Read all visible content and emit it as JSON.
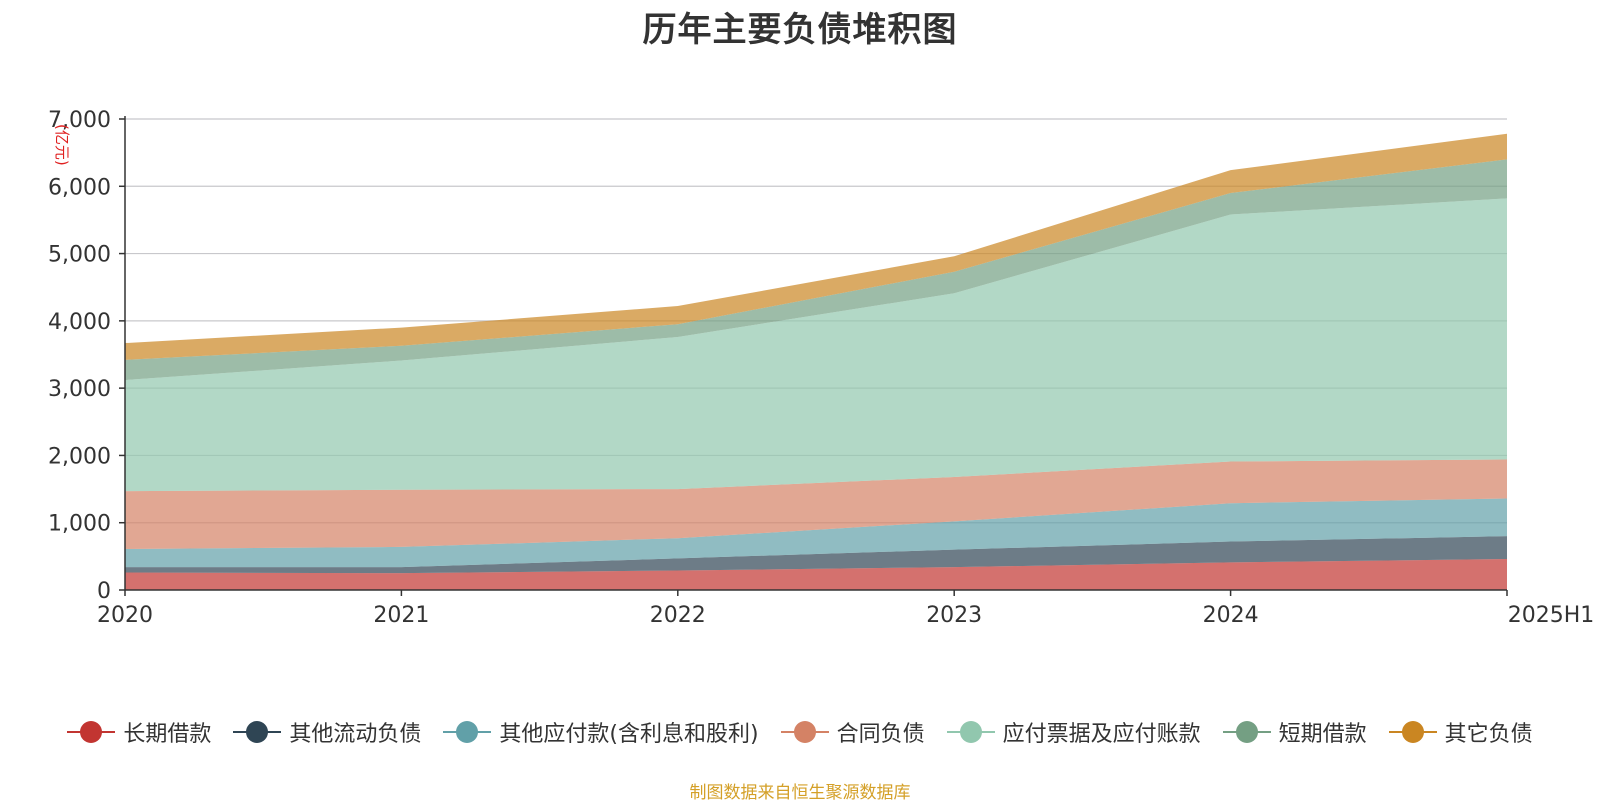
{
  "chart_data": {
    "type": "area",
    "stacked": true,
    "title": "历年主要负债堆积图",
    "unit_label": "(亿元)",
    "x": [
      "2020",
      "2021",
      "2022",
      "2023",
      "2024",
      "2025H1"
    ],
    "ylim": [
      0,
      7000
    ],
    "yticks": [
      "0",
      "1,000",
      "2,000",
      "3,000",
      "4,000",
      "5,000",
      "6,000",
      "7,000"
    ],
    "grid": true,
    "legend_position": "bottom",
    "series": [
      {
        "name": "长期借款",
        "color": "#c23531",
        "values": [
          260,
          250,
          290,
          340,
          410,
          460
        ]
      },
      {
        "name": "其他流动负债",
        "color": "#2f4554",
        "values": [
          80,
          90,
          180,
          260,
          310,
          340
        ]
      },
      {
        "name": "其他应付款(含利息和股利)",
        "color": "#61a0a8",
        "values": [
          270,
          300,
          300,
          420,
          570,
          560
        ]
      },
      {
        "name": "合同负债",
        "color": "#d48265",
        "values": [
          860,
          850,
          730,
          660,
          620,
          580
        ]
      },
      {
        "name": "应付票据及应付账款",
        "color": "#91c7ae",
        "values": [
          1650,
          1920,
          2260,
          2730,
          3670,
          3880
        ]
      },
      {
        "name": "短期借款",
        "color": "#749f83",
        "values": [
          300,
          220,
          190,
          320,
          320,
          580
        ]
      },
      {
        "name": "其它负债",
        "color": "#ca8622",
        "values": [
          250,
          270,
          270,
          230,
          340,
          380
        ]
      }
    ]
  },
  "source_text": "制图数据来自恒生聚源数据库"
}
